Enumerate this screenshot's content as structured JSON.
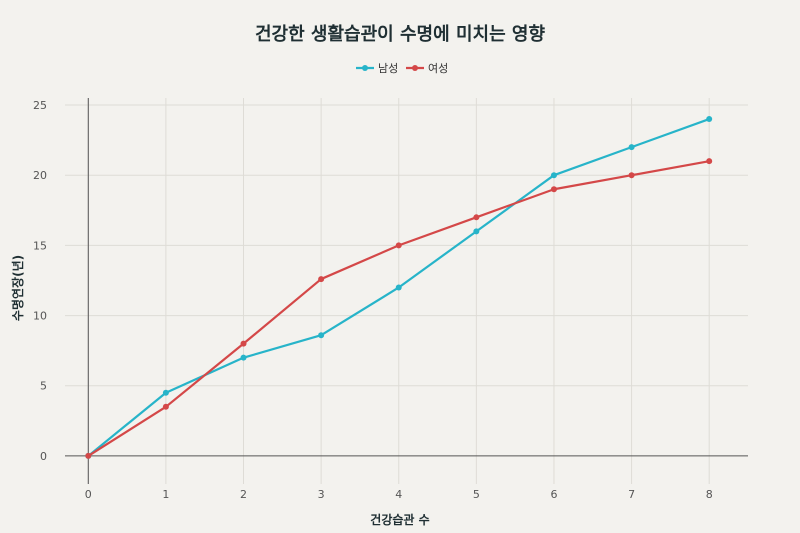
{
  "chart_data": {
    "type": "line",
    "title": "건강한 생활습관이 수명에 미치는 영향",
    "xlabel": "건강습관 수",
    "ylabel": "수명연장(년)",
    "x": [
      0,
      1,
      2,
      3,
      4,
      5,
      6,
      7,
      8
    ],
    "xlim": [
      -0.3,
      8.5
    ],
    "ylim": [
      -2,
      25.5
    ],
    "yticks": [
      0,
      5,
      10,
      15,
      20,
      25
    ],
    "grid": true,
    "legend_position": "top-center",
    "series": [
      {
        "name": "남성",
        "color": "#27b4c9",
        "values": [
          0,
          4.5,
          7,
          8.6,
          12,
          16,
          20,
          22,
          24
        ]
      },
      {
        "name": "여성",
        "color": "#d44848",
        "values": [
          0,
          3.5,
          8,
          12.6,
          15,
          17,
          19,
          20,
          21
        ]
      }
    ]
  }
}
